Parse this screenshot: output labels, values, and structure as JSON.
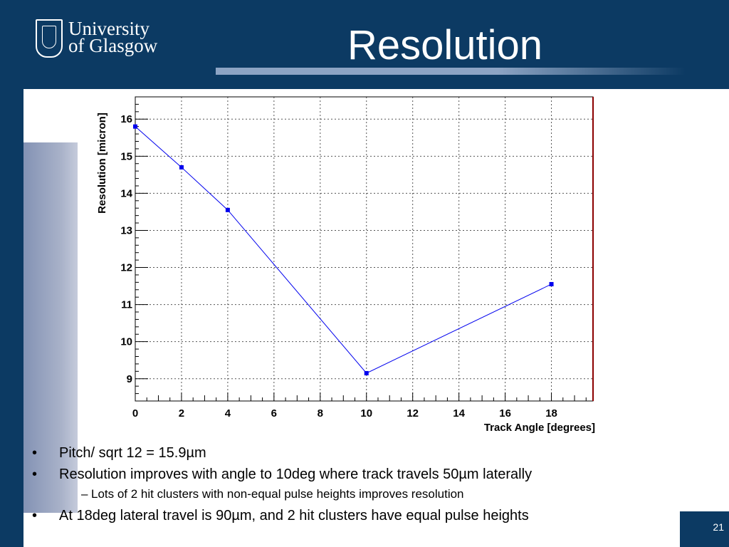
{
  "header": {
    "logo_line1": "University",
    "logo_line2": "of Glasgow",
    "title": "Resolution"
  },
  "bullets": [
    {
      "level": 1,
      "marker": "•",
      "text": "Pitch/ sqrt 12 = 15.9µm"
    },
    {
      "level": 1,
      "marker": "•",
      "text": "Resolution improves with angle to 10deg where track travels 50µm laterally"
    },
    {
      "level": 2,
      "marker": "–",
      "text": "Lots of 2 hit clusters with non-equal pulse heights improves resolution"
    },
    {
      "level": 1,
      "marker": "•",
      "text": "At 18deg lateral travel is 90µm, and 2 hit clusters have equal pulse heights"
    }
  ],
  "page_number": "21",
  "colors": {
    "header_bg": "#0c3a63",
    "series": "#0000ee",
    "frame_right": "#8b0000"
  },
  "chart_data": {
    "type": "line",
    "xlabel": "Track Angle [degrees]",
    "ylabel": "Resolution [micron]",
    "xlim": [
      0,
      19.8
    ],
    "ylim": [
      8.4,
      16.6
    ],
    "x_ticks": [
      0,
      2,
      4,
      6,
      8,
      10,
      12,
      14,
      16,
      18
    ],
    "y_ticks": [
      9,
      10,
      11,
      12,
      13,
      14,
      15,
      16
    ],
    "grid": true,
    "series": [
      {
        "color": "#0000ee",
        "x": [
          0,
          2,
          4,
          10,
          18
        ],
        "y": [
          15.8,
          14.7,
          13.55,
          9.15,
          11.55
        ]
      }
    ]
  }
}
